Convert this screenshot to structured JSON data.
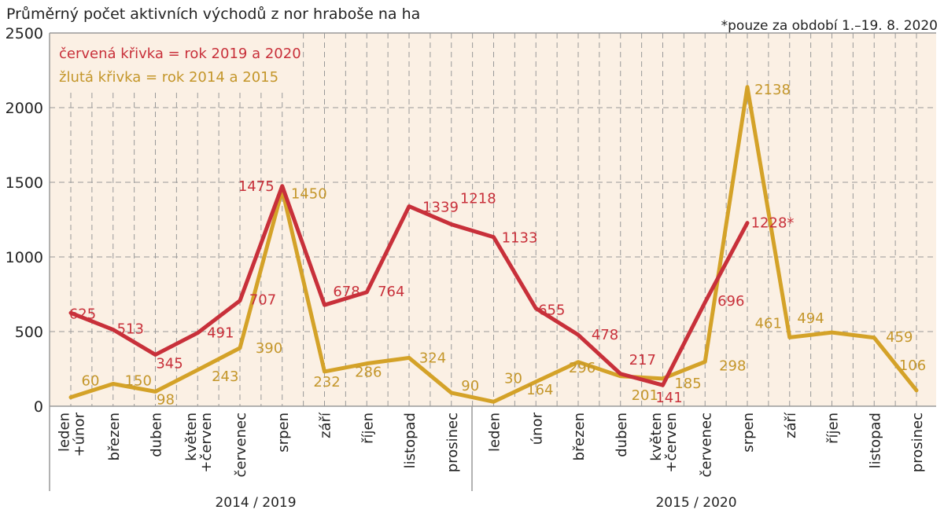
{
  "chart_data": {
    "type": "line",
    "title": "Průměrný počet aktivních východů z nor hraboše na ha",
    "note": "*pouze za období 1.–19. 8. 2020",
    "legend": [
      "červená křivka = rok 2019 a 2020",
      "žlutá křivka = rok 2014 a 2015"
    ],
    "legend_placement": "top-left",
    "ylim": [
      0,
      2500
    ],
    "yticks": [
      0,
      500,
      1000,
      1500,
      2000,
      2500
    ],
    "grid": true,
    "groups": [
      "2014 / 2019",
      "2015 / 2020"
    ],
    "categories": [
      [
        "leden",
        "+únor"
      ],
      [
        "březen"
      ],
      [
        "duben"
      ],
      [
        "květen",
        "+červen"
      ],
      [
        "červenec"
      ],
      [
        "srpen"
      ],
      [
        "září"
      ],
      [
        "říjen"
      ],
      [
        "listopad"
      ],
      [
        "prosinec"
      ],
      [
        "leden"
      ],
      [
        "únor"
      ],
      [
        "březen"
      ],
      [
        "duben"
      ],
      [
        "květen",
        "+červen"
      ],
      [
        "červenec"
      ],
      [
        "srpen"
      ],
      [
        "září"
      ],
      [
        "říjen"
      ],
      [
        "listopad"
      ],
      [
        "prosinec"
      ]
    ],
    "series": [
      {
        "name": "rok 2019 a 2020",
        "color": "#c8303a",
        "values": [
          625,
          513,
          345,
          491,
          707,
          1475,
          678,
          764,
          1339,
          1218,
          1133,
          655,
          478,
          217,
          141,
          696,
          1228,
          null,
          null,
          null,
          null
        ],
        "labels": [
          "625",
          "513",
          "345",
          "491",
          "707",
          "1475",
          "678",
          "764",
          "1339",
          "1218",
          "1133",
          "655",
          "478",
          "217",
          "141",
          "696",
          "1228*",
          null,
          null,
          null,
          null
        ]
      },
      {
        "name": "rok 2014 a 2015",
        "color": "#d4a228",
        "values": [
          60,
          150,
          98,
          243,
          390,
          1450,
          232,
          286,
          324,
          90,
          30,
          164,
          296,
          201,
          185,
          298,
          2138,
          461,
          494,
          459,
          106
        ],
        "labels": [
          "60",
          "150",
          "98",
          "243",
          "390",
          "1450",
          "232",
          "286",
          "324",
          "90",
          "30",
          "164",
          "296",
          "201",
          "185",
          "298",
          "2138",
          "461",
          "494",
          "459",
          "106"
        ]
      }
    ]
  }
}
